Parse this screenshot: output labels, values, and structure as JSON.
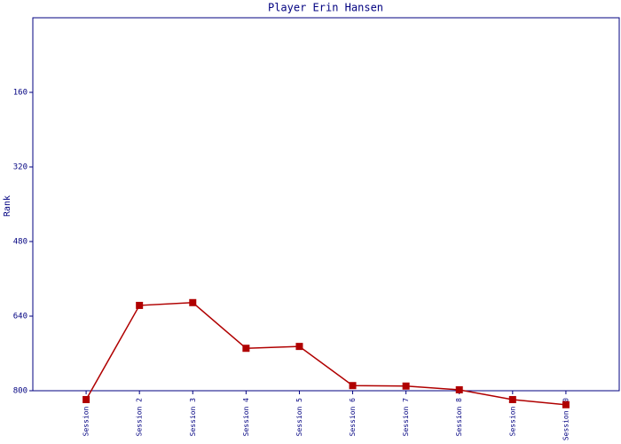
{
  "chart_data": {
    "type": "line",
    "title": "Player Erin Hansen",
    "y_label": "Rank",
    "categories": [
      "Session 1",
      "Session 2",
      "Session 3",
      "Session 4",
      "Session 5",
      "Session 6",
      "Session 7",
      "Session 8",
      "Session 9",
      "Session 10"
    ],
    "series": [
      {
        "name": "Rank",
        "color": "#b00000",
        "values": [
          819,
          617,
          611,
          709,
          705,
          789,
          790,
          798,
          819,
          830
        ]
      }
    ],
    "ylim": [
      800,
      0
    ],
    "yticks": [
      160,
      320,
      480,
      640,
      800
    ]
  }
}
